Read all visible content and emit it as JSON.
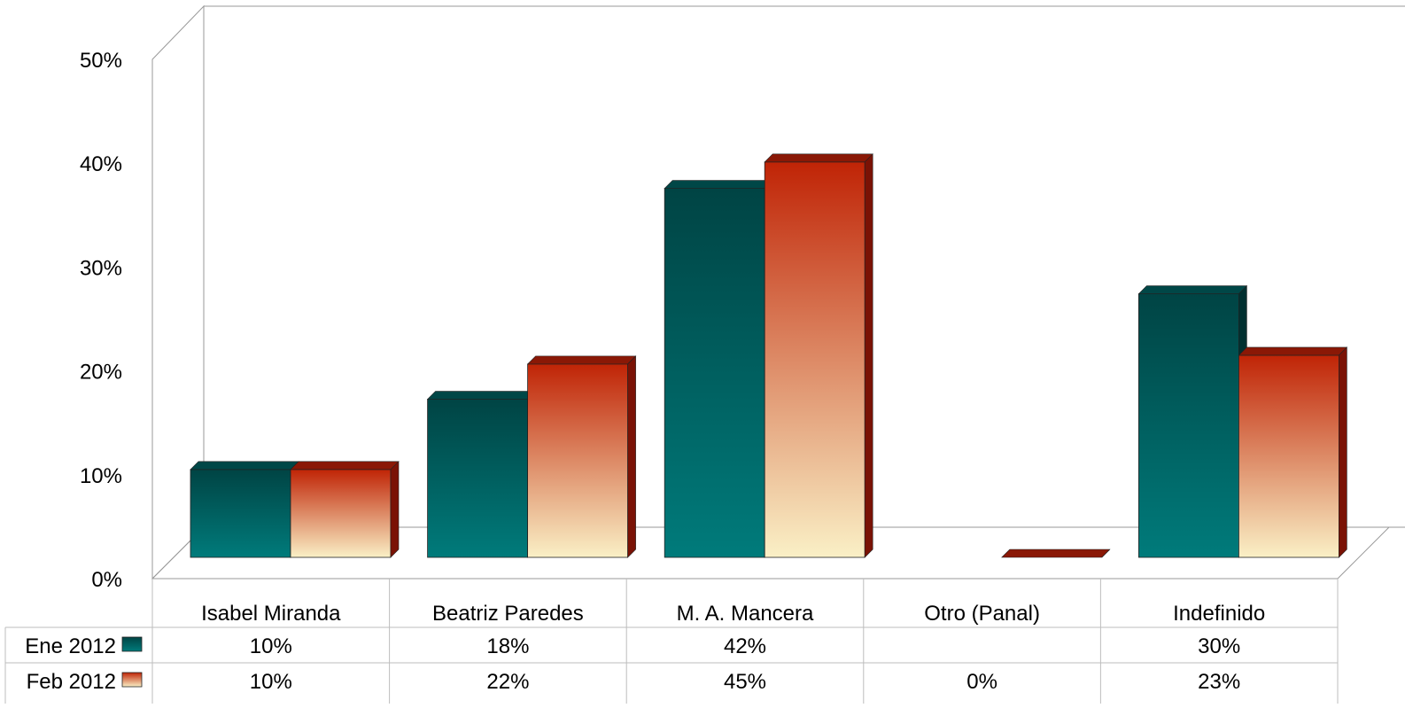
{
  "chart_data": {
    "type": "bar",
    "title": "",
    "xlabel": "",
    "ylabel": "",
    "ylim": [
      0,
      50
    ],
    "ytick_values": [
      0,
      10,
      20,
      30,
      40,
      50
    ],
    "ytick_labels": [
      "0%",
      "10%",
      "20%",
      "30%",
      "40%",
      "50%"
    ],
    "categories": [
      "Isabel Miranda",
      "Beatriz Paredes",
      "M. A. Mancera",
      "Otro (Panal)",
      "Indefinido"
    ],
    "series": [
      {
        "name": "Ene 2012",
        "values": [
          10,
          18,
          42,
          null,
          30
        ],
        "labels": [
          "10%",
          "18%",
          "42%",
          "",
          "30%"
        ],
        "colors": {
          "top": "#004444",
          "bottom": "#007b7b",
          "side": "#003030",
          "cap": "#004747"
        }
      },
      {
        "name": "Feb 2012",
        "values": [
          10,
          22,
          45,
          0,
          23
        ],
        "labels": [
          "10%",
          "22%",
          "45%",
          "0%",
          "23%"
        ],
        "colors": {
          "top": "#c02406",
          "bottom": "#faf0c6",
          "side": "#7a1205",
          "cap": "#8a1806"
        }
      }
    ],
    "grid": false,
    "legend": "data-table",
    "style": "3d-bar"
  }
}
